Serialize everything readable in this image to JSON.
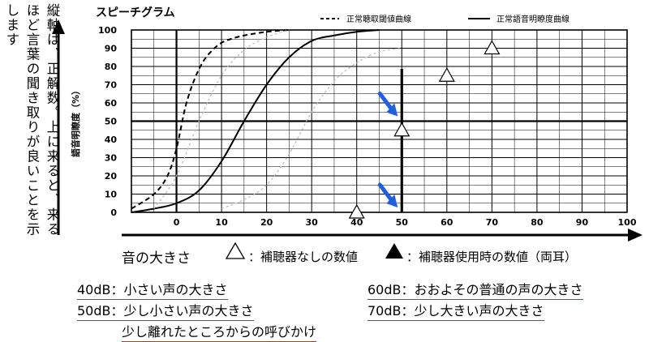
{
  "left_note": "縦軸は、正解数。上に来ると、来るほど言葉の聞き取りが良いことを示します",
  "x_caption": "音の大きさ",
  "markers_legend": {
    "unaided": "：補聴器なしの数値",
    "aided": "：補聴器使用時の数値（両耳）"
  },
  "levels": [
    {
      "db": "40dB",
      "desc": "：小さい声の大きさ"
    },
    {
      "db": "50dB",
      "desc": "：少し小さい声の大きさ"
    },
    {
      "db": "",
      "desc": "少し離れたところからの呼びかけ"
    },
    {
      "db": "60dB",
      "desc": "：おおよその普通の声の大きさ"
    },
    {
      "db": "70dB",
      "desc": "：少し大きい声の大きさ"
    }
  ],
  "colors": {
    "arrow_blue": "#1f5fe0",
    "underline_red": "#e02020"
  },
  "chart_data": {
    "type": "line",
    "title": "スピーチグラム",
    "ylabel": "語音明瞭度（%）",
    "xlim": [
      -10,
      100
    ],
    "ylim": [
      0,
      100
    ],
    "x_ticks": [
      0,
      10,
      20,
      30,
      40,
      50,
      60,
      70,
      80,
      90,
      100
    ],
    "y_ticks": [
      0,
      10,
      20,
      30,
      40,
      50,
      60,
      70,
      80,
      90,
      100
    ],
    "series": [
      {
        "name": "正常聴取閾値曲線",
        "style": "dashed",
        "x": [
          -10,
          -5,
          -2,
          0,
          2,
          4,
          6,
          8,
          10,
          12,
          15,
          20,
          25
        ],
        "y": [
          2,
          10,
          20,
          35,
          58,
          73,
          83,
          89,
          93,
          95,
          97,
          99,
          100
        ]
      },
      {
        "name": "正常語音明瞭度曲線",
        "style": "solid",
        "x": [
          -10,
          -5,
          0,
          5,
          10,
          15,
          20,
          25,
          30,
          35,
          40,
          45
        ],
        "y": [
          0,
          2,
          5,
          12,
          28,
          50,
          70,
          85,
          94,
          97,
          99,
          100
        ]
      },
      {
        "name": "",
        "style": "gray",
        "x": [
          -5,
          0,
          5,
          10,
          15,
          20,
          25
        ],
        "y": [
          2,
          20,
          50,
          75,
          89,
          96,
          100
        ]
      },
      {
        "name": "",
        "style": "gray",
        "x": [
          10,
          15,
          20,
          25,
          30,
          35,
          40,
          45,
          50
        ],
        "y": [
          2,
          7,
          15,
          32,
          55,
          72,
          82,
          88,
          90
        ]
      }
    ],
    "unaided_points": [
      {
        "x": 40,
        "y": 0
      },
      {
        "x": 50,
        "y": 45
      },
      {
        "x": 60,
        "y": 75
      },
      {
        "x": 70,
        "y": 90
      }
    ],
    "annotated_x": 50
  }
}
